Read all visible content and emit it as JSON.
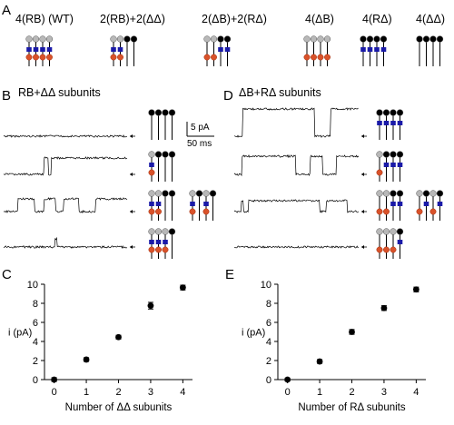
{
  "panels": {
    "A": {
      "letter": "A",
      "groups": [
        "4(RB) (WT)",
        "2(RB)+2(ΔΔ)",
        "2(ΔB)+2(RΔ)",
        "4(ΔB)",
        "4(RΔ)",
        "4(ΔΔ)"
      ]
    },
    "B": {
      "letter": "B",
      "title": "RB+ΔΔ subunits"
    },
    "C": {
      "letter": "C"
    },
    "D": {
      "letter": "D",
      "title": "ΔB+RΔ subunits"
    },
    "E": {
      "letter": "E"
    }
  },
  "scale_bar": {
    "current": "5 pA",
    "time": "50 ms"
  },
  "colors": {
    "grey_ball": "#b8b8b8",
    "black_ball": "#000000",
    "blue_square": "#1a1aa8",
    "red_ball": "#d9522a"
  },
  "chart_data": [
    {
      "panel": "C",
      "type": "scatter",
      "xlabel": "Number of ΔΔ subunits",
      "ylabel": "i (pA)",
      "xlim": [
        -0.3,
        4.3
      ],
      "ylim": [
        0,
        10
      ],
      "xticks": [
        0,
        1,
        2,
        3,
        4
      ],
      "yticks": [
        0,
        2,
        4,
        6,
        8,
        10
      ],
      "x": [
        0,
        1,
        2,
        3,
        4
      ],
      "y": [
        0.0,
        2.1,
        4.45,
        7.75,
        9.65
      ],
      "error": [
        0.2,
        0.2,
        0.2,
        0.35,
        0.25
      ]
    },
    {
      "panel": "E",
      "type": "scatter",
      "xlabel": "Number of RΔ subunits",
      "ylabel": "i (pA)",
      "xlim": [
        -0.3,
        4.3
      ],
      "ylim": [
        0,
        10
      ],
      "xticks": [
        0,
        1,
        2,
        3,
        4
      ],
      "yticks": [
        0,
        2,
        4,
        6,
        8,
        10
      ],
      "x": [
        0,
        1,
        2,
        3,
        4
      ],
      "y": [
        0.0,
        1.9,
        5.0,
        7.5,
        9.45
      ],
      "error": [
        0.15,
        0.2,
        0.25,
        0.25,
        0.25
      ]
    }
  ]
}
